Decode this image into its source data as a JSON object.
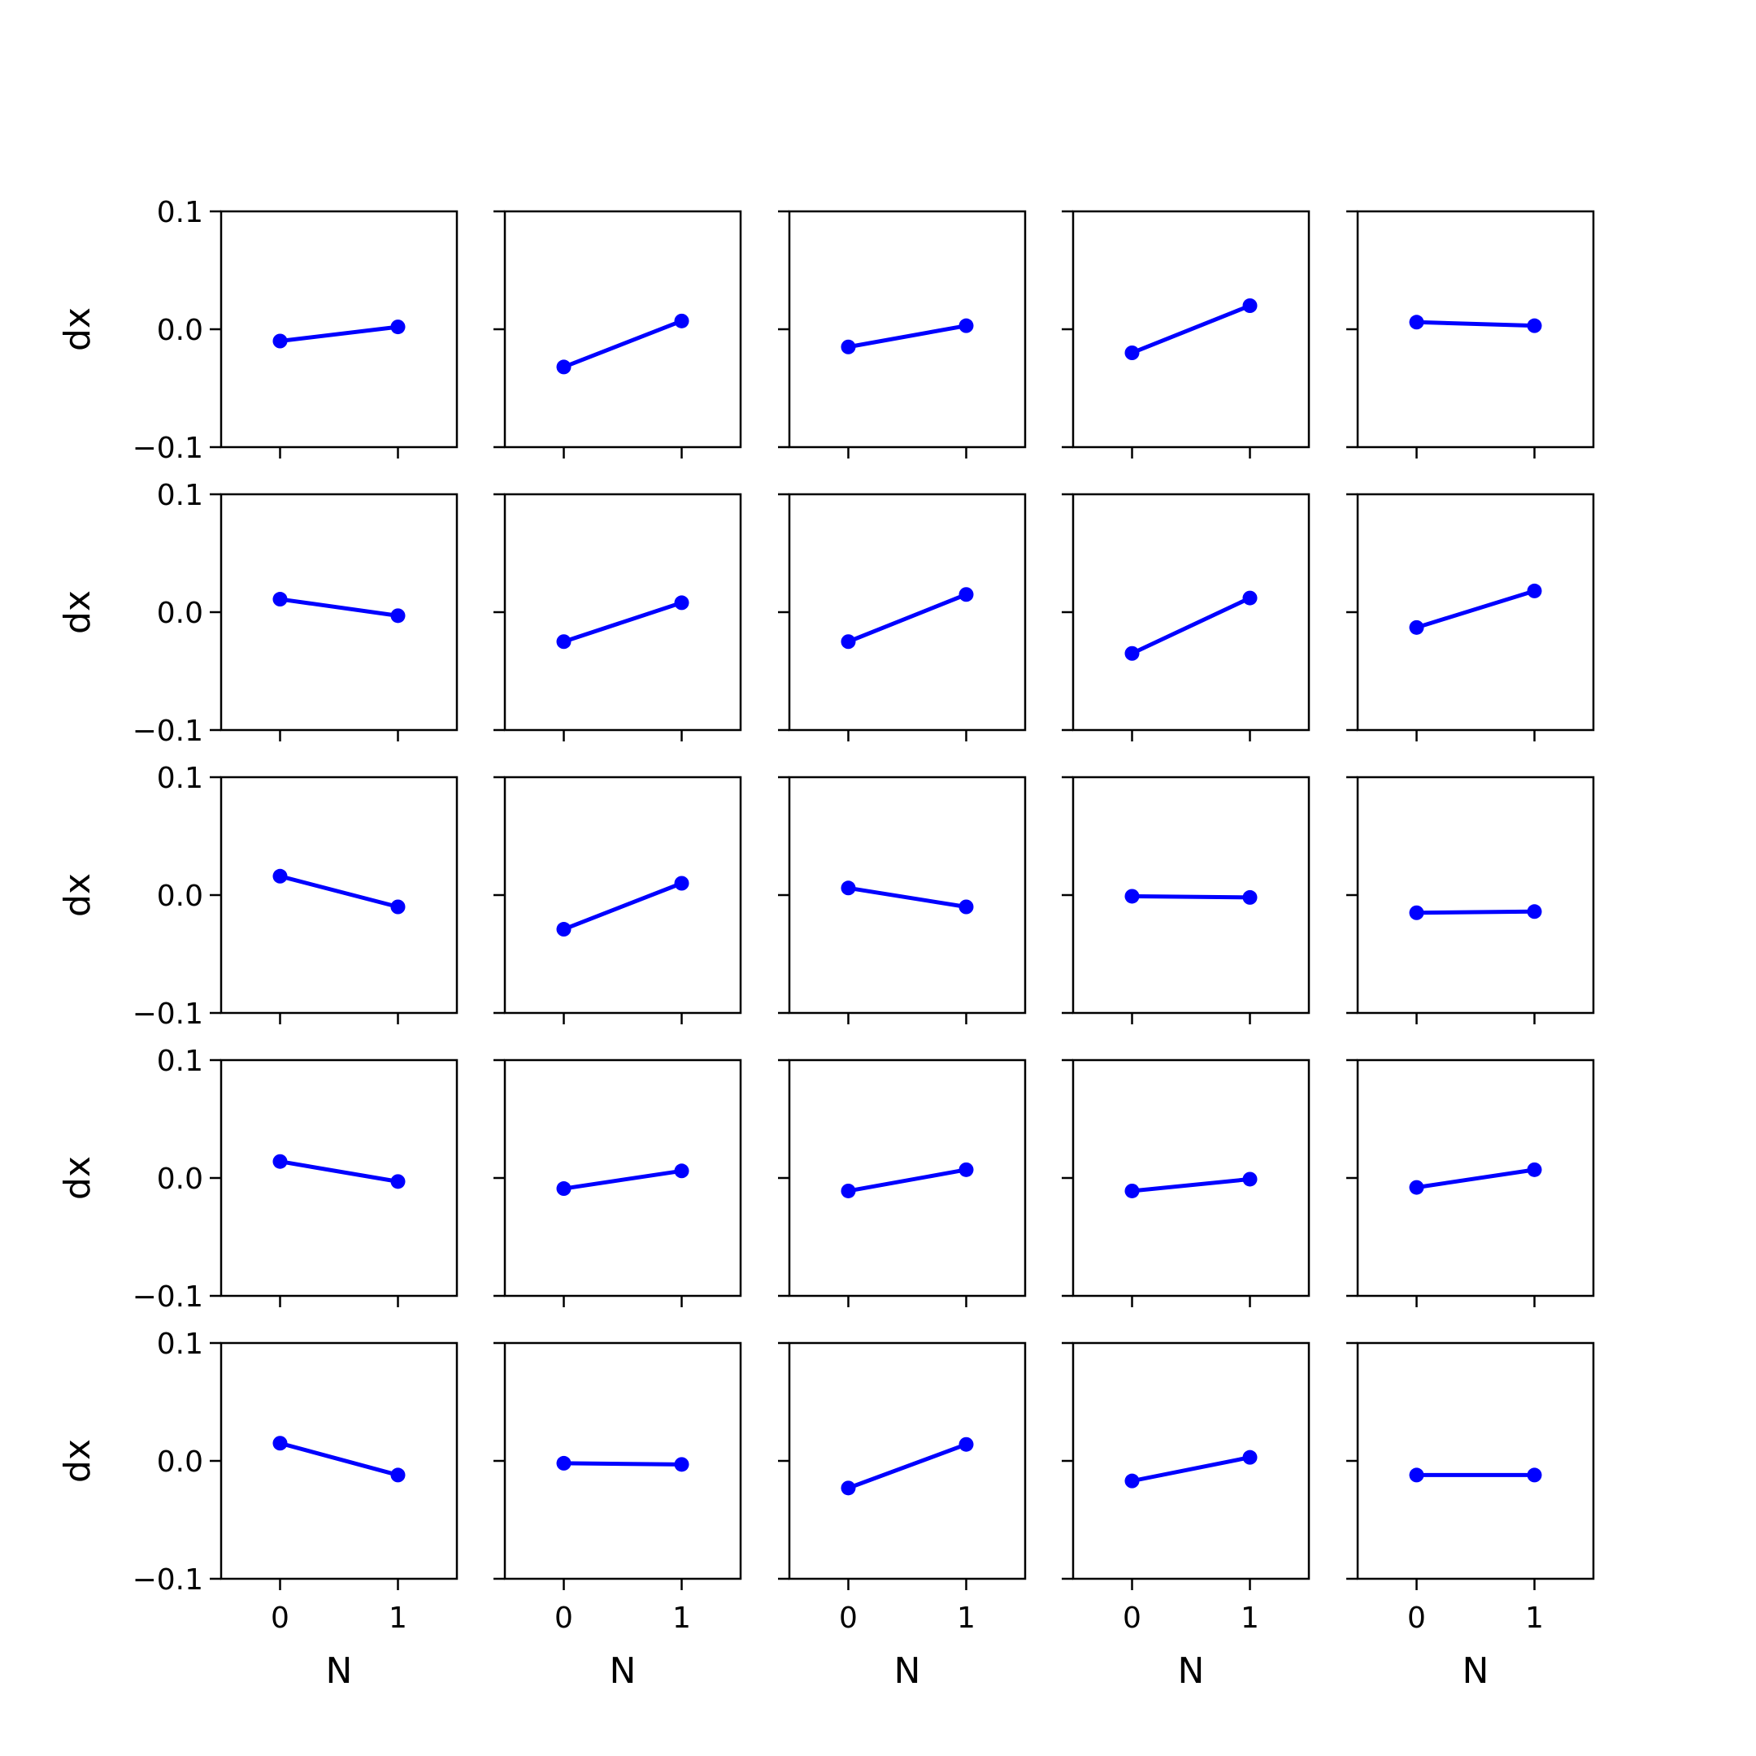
{
  "chart_data": {
    "type": "line",
    "layout": "5x5 grid of subplots, shared axes",
    "line_color": "#0000ff",
    "xlabel": "N",
    "ylabel": "dx",
    "xlim": [
      -0.5,
      1.5
    ],
    "ylim": [
      -0.1,
      0.1
    ],
    "xticks": [
      0,
      1
    ],
    "xtick_labels": [
      "0",
      "1"
    ],
    "yticks": [
      0.1,
      0.0,
      -0.1
    ],
    "ytick_labels": [
      "0.1",
      "0.0",
      "−0.1"
    ],
    "grid": false,
    "legend": "none",
    "panels": [
      {
        "x": [
          0,
          1
        ],
        "values": [
          -0.01,
          0.002
        ]
      },
      {
        "x": [
          0,
          1
        ],
        "values": [
          -0.032,
          0.007
        ]
      },
      {
        "x": [
          0,
          1
        ],
        "values": [
          -0.015,
          0.003
        ]
      },
      {
        "x": [
          0,
          1
        ],
        "values": [
          -0.02,
          0.02
        ]
      },
      {
        "x": [
          0,
          1
        ],
        "values": [
          0.006,
          0.003
        ]
      },
      {
        "x": [
          0,
          1
        ],
        "values": [
          0.011,
          -0.003
        ]
      },
      {
        "x": [
          0,
          1
        ],
        "values": [
          -0.025,
          0.008
        ]
      },
      {
        "x": [
          0,
          1
        ],
        "values": [
          -0.025,
          0.015
        ]
      },
      {
        "x": [
          0,
          1
        ],
        "values": [
          -0.035,
          0.012
        ]
      },
      {
        "x": [
          0,
          1
        ],
        "values": [
          -0.013,
          0.018
        ]
      },
      {
        "x": [
          0,
          1
        ],
        "values": [
          0.016,
          -0.01
        ]
      },
      {
        "x": [
          0,
          1
        ],
        "values": [
          -0.029,
          0.01
        ]
      },
      {
        "x": [
          0,
          1
        ],
        "values": [
          0.006,
          -0.01
        ]
      },
      {
        "x": [
          0,
          1
        ],
        "values": [
          -0.001,
          -0.002
        ]
      },
      {
        "x": [
          0,
          1
        ],
        "values": [
          -0.015,
          -0.014
        ]
      },
      {
        "x": [
          0,
          1
        ],
        "values": [
          0.014,
          -0.003
        ]
      },
      {
        "x": [
          0,
          1
        ],
        "values": [
          -0.009,
          0.006
        ]
      },
      {
        "x": [
          0,
          1
        ],
        "values": [
          -0.011,
          0.007
        ]
      },
      {
        "x": [
          0,
          1
        ],
        "values": [
          -0.011,
          -0.001
        ]
      },
      {
        "x": [
          0,
          1
        ],
        "values": [
          -0.008,
          0.007
        ]
      },
      {
        "x": [
          0,
          1
        ],
        "values": [
          0.015,
          -0.012
        ]
      },
      {
        "x": [
          0,
          1
        ],
        "values": [
          -0.002,
          -0.003
        ]
      },
      {
        "x": [
          0,
          1
        ],
        "values": [
          -0.023,
          0.014
        ]
      },
      {
        "x": [
          0,
          1
        ],
        "values": [
          -0.017,
          0.003
        ]
      },
      {
        "x": [
          0,
          1
        ],
        "values": [
          -0.012,
          -0.012
        ]
      }
    ]
  }
}
